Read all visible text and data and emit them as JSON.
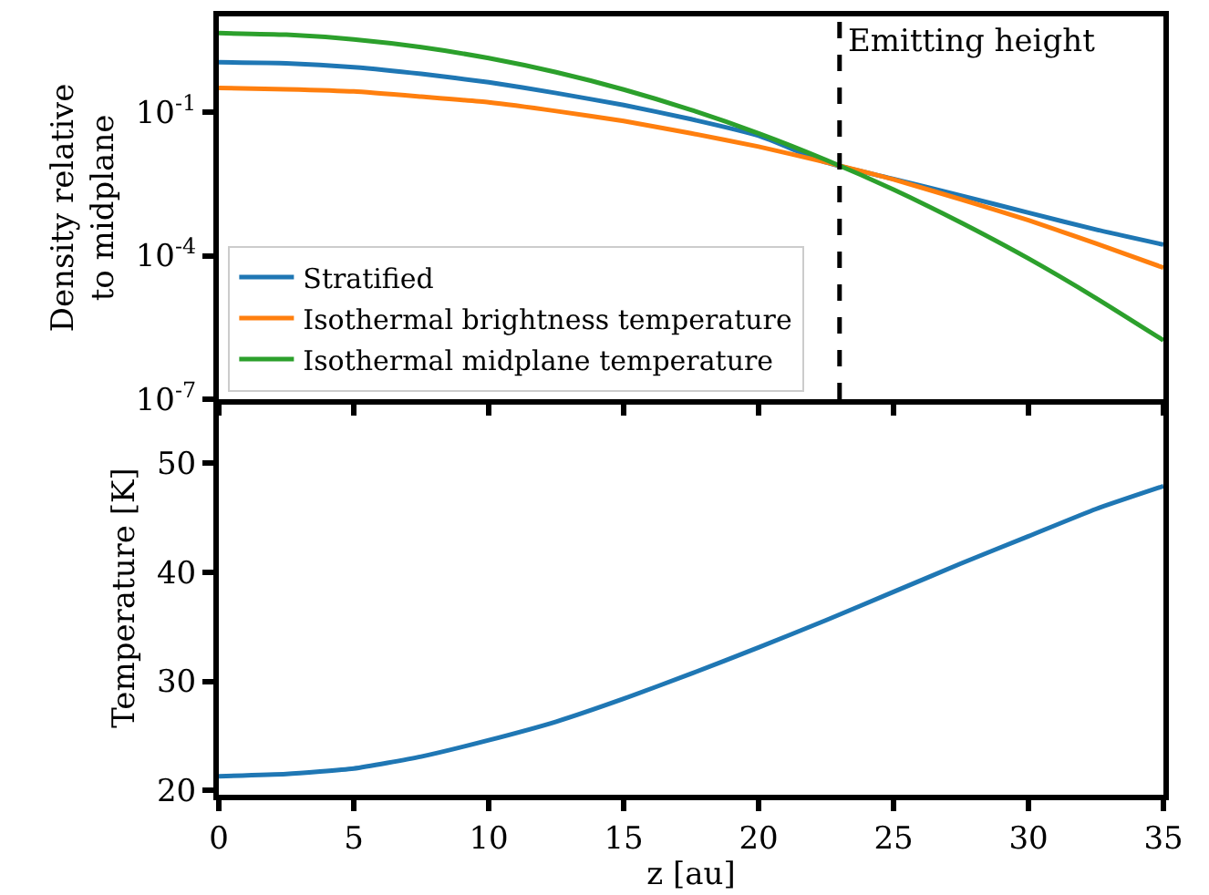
{
  "chart_data": [
    {
      "type": "line",
      "ylabel": "Density relative\nto midplane",
      "log": "y",
      "grid": false,
      "legend": "bottom left",
      "tick_labels": "y",
      "line_style": "solid",
      "marker": "none",
      "x": [
        0,
        2.5,
        5,
        7.5,
        10,
        12.5,
        15,
        17.5,
        20,
        22.5,
        25,
        27.5,
        30,
        32.5,
        35
      ],
      "xlim": [
        0,
        35
      ],
      "xticks": [
        0,
        5,
        10,
        15,
        20,
        25,
        30,
        35
      ],
      "ylim": [
        1e-07,
        10
      ],
      "yticks": [
        {
          "value": 0.1,
          "label": "10$^{-1}$"
        },
        {
          "value": 0.0001,
          "label": "10$^{-4}$"
        },
        {
          "value": 1e-07,
          "label": "10$^{-7}$"
        }
      ],
      "series": [
        {
          "name": "Stratified",
          "color": "#1f77b4",
          "values": [
            1.1,
            1.05,
            0.87,
            0.63,
            0.42,
            0.25,
            0.14,
            0.071,
            0.032,
            0.0089,
            0.004,
            0.0018,
            0.00079,
            0.00035,
            0.00017
          ]
        },
        {
          "name": "Isothermal brightness temperature",
          "color": "#ff7f0e",
          "values": [
            0.32,
            0.3,
            0.27,
            0.21,
            0.16,
            0.105,
            0.065,
            0.036,
            0.019,
            0.0089,
            0.0039,
            0.0015,
            0.00055,
            0.00018,
            5.6e-05
          ]
        },
        {
          "name": "Isothermal midplane temperature",
          "color": "#2ca02c",
          "values": [
            4.47,
            4.14,
            3.3,
            2.27,
            1.34,
            0.68,
            0.296,
            0.111,
            0.036,
            0.01,
            0.0024,
            0.00049,
            8.7e-05,
            1.3e-05,
            1.7e-06
          ]
        }
      ],
      "ref_lines": [
        {
          "axis": "x",
          "value": 23,
          "label": "Emitting height",
          "color": "#000000",
          "line_style": "dashed"
        }
      ]
    },
    {
      "type": "line",
      "xlabel": "z [au]",
      "ylabel": "Temperature [K]",
      "grid": false,
      "legend": false,
      "line_style": "solid",
      "marker": "none",
      "x": [
        0,
        2.5,
        5,
        7.5,
        10,
        12.5,
        15,
        17.5,
        20,
        22.5,
        25,
        27.5,
        30,
        32.5,
        35
      ],
      "xlim": [
        0,
        35
      ],
      "xticks": [
        0,
        5,
        10,
        15,
        20,
        25,
        30,
        35
      ],
      "ylim": [
        19.6,
        55.7
      ],
      "yticks": [
        20,
        30,
        40,
        50
      ],
      "series": [
        {
          "color": "#1f77b4",
          "values": [
            21.3,
            21.5,
            22,
            23.1,
            24.6,
            26.3,
            28.4,
            30.7,
            33.1,
            35.6,
            38.2,
            40.8,
            43.3,
            45.8,
            47.9
          ]
        }
      ]
    }
  ]
}
